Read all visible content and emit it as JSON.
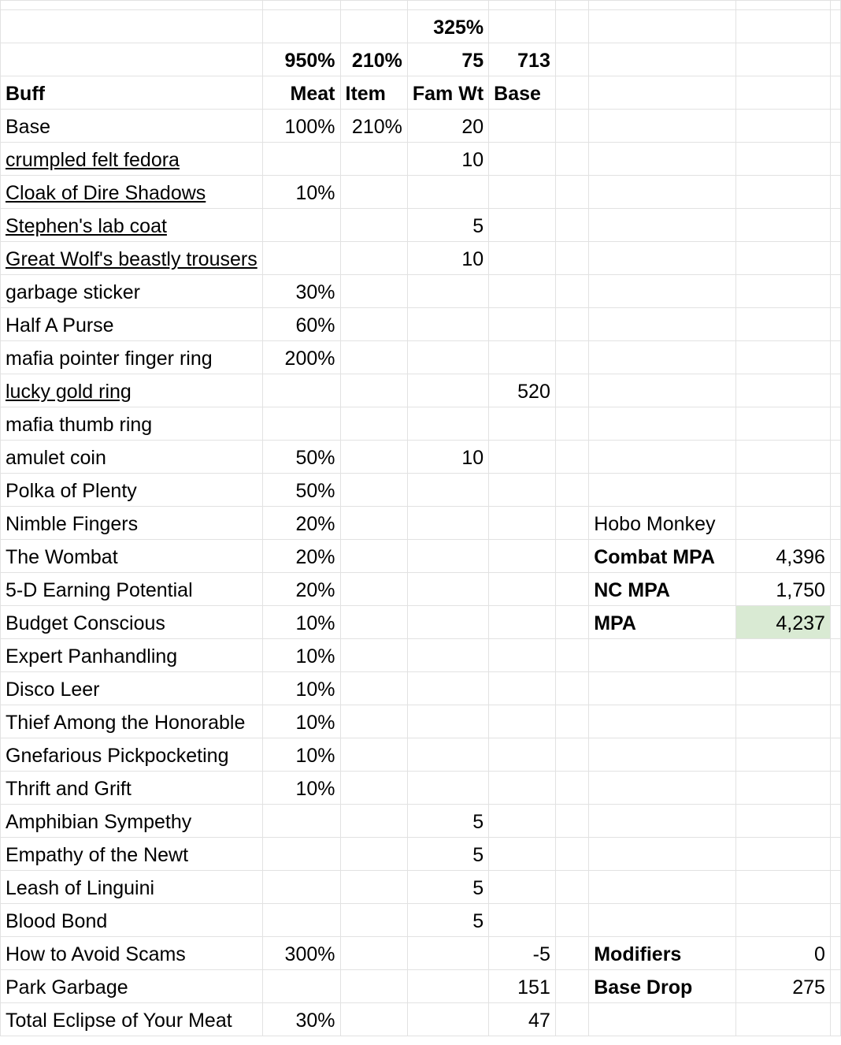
{
  "header": {
    "row1": {
      "fam": "325%"
    },
    "row2": {
      "meat": "950%",
      "item": "210%",
      "fam": "75",
      "base": "713"
    },
    "row3": {
      "buff": "Buff",
      "meat": "Meat",
      "item": "Item",
      "fam": "Fam Wt",
      "base": "Base"
    }
  },
  "rows": [
    {
      "name": "Base",
      "meat": "100%",
      "item": "210%",
      "fam": "20",
      "base": ""
    },
    {
      "name": "crumpled felt fedora",
      "meat": "",
      "item": "",
      "fam": "10",
      "base": ""
    },
    {
      "name": "Cloak of Dire Shadows",
      "meat": "10%",
      "item": "",
      "fam": "",
      "base": ""
    },
    {
      "name": "Stephen's lab coat",
      "meat": "",
      "item": "",
      "fam": "5",
      "base": ""
    },
    {
      "name": "Great Wolf's beastly trousers",
      "meat": "",
      "item": "",
      "fam": "10",
      "base": ""
    },
    {
      "name": "garbage sticker",
      "meat": "30%",
      "item": "",
      "fam": "",
      "base": ""
    },
    {
      "name": "Half A Purse",
      "meat": "60%",
      "item": "",
      "fam": "",
      "base": ""
    },
    {
      "name": "mafia pointer finger ring",
      "meat": "200%",
      "item": "",
      "fam": "",
      "base": ""
    },
    {
      "name": "lucky gold ring",
      "meat": "",
      "item": "",
      "fam": "",
      "base": "520"
    },
    {
      "name": "mafia thumb ring",
      "meat": "",
      "item": "",
      "fam": "",
      "base": ""
    },
    {
      "name": "amulet coin",
      "meat": "50%",
      "item": "",
      "fam": "10",
      "base": ""
    },
    {
      "name": "Polka of Plenty",
      "meat": "50%",
      "item": "",
      "fam": "",
      "base": ""
    },
    {
      "name": "Nimble Fingers",
      "meat": "20%",
      "item": "",
      "fam": "",
      "base": ""
    },
    {
      "name": "The Wombat",
      "meat": "20%",
      "item": "",
      "fam": "",
      "base": ""
    },
    {
      "name": "5-D Earning Potential",
      "meat": "20%",
      "item": "",
      "fam": "",
      "base": ""
    },
    {
      "name": "Budget Conscious",
      "meat": "10%",
      "item": "",
      "fam": "",
      "base": ""
    },
    {
      "name": "Expert Panhandling",
      "meat": "10%",
      "item": "",
      "fam": "",
      "base": ""
    },
    {
      "name": "Disco Leer",
      "meat": "10%",
      "item": "",
      "fam": "",
      "base": ""
    },
    {
      "name": "Thief Among the Honorable",
      "meat": "10%",
      "item": "",
      "fam": "",
      "base": ""
    },
    {
      "name": "Gnefarious Pickpocketing",
      "meat": "10%",
      "item": "",
      "fam": "",
      "base": ""
    },
    {
      "name": "Thrift and Grift",
      "meat": "10%",
      "item": "",
      "fam": "",
      "base": ""
    },
    {
      "name": "Amphibian Sympethy",
      "meat": "",
      "item": "",
      "fam": "5",
      "base": ""
    },
    {
      "name": "Empathy of the Newt",
      "meat": "",
      "item": "",
      "fam": "5",
      "base": ""
    },
    {
      "name": "Leash of Linguini",
      "meat": "",
      "item": "",
      "fam": "5",
      "base": ""
    },
    {
      "name": "Blood Bond",
      "meat": "",
      "item": "",
      "fam": "5",
      "base": ""
    },
    {
      "name": "How to Avoid Scams",
      "meat": "300%",
      "item": "",
      "fam": "",
      "base": "-5"
    },
    {
      "name": "Park Garbage",
      "meat": "",
      "item": "",
      "fam": "",
      "base": "151"
    },
    {
      "name": "Total Eclipse of Your Meat",
      "meat": "30%",
      "item": "",
      "fam": "",
      "base": "47"
    }
  ],
  "side": {
    "familiar_label": "Hobo Monkey",
    "combat_mpa_label": "Combat MPA",
    "combat_mpa_value": "4,396",
    "nc_mpa_label": "NC MPA",
    "nc_mpa_value": "1,750",
    "mpa_label": "MPA",
    "mpa_value": "4,237",
    "modifiers_label": "Modifiers",
    "modifiers_value": "0",
    "base_drop_label": "Base Drop",
    "base_drop_value": "275"
  },
  "colors": {
    "grid": "#e2e2e2",
    "highlight": "#d9ead3"
  }
}
